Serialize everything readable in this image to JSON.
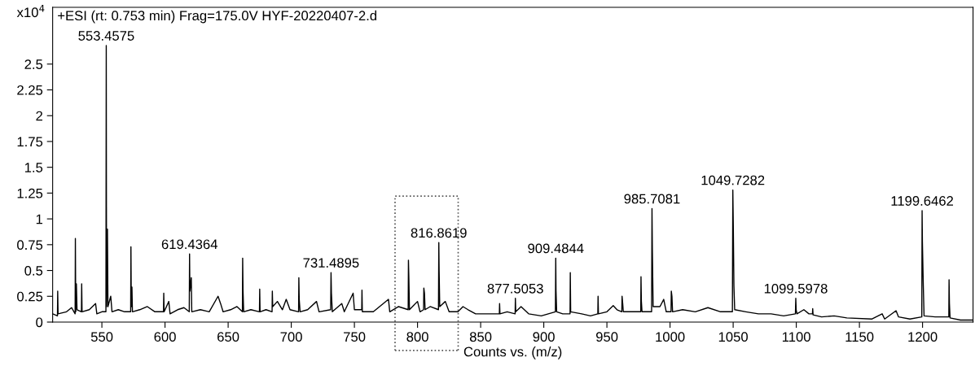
{
  "chart_data": {
    "type": "line",
    "title": "+ESI (rt: 0.753 min) Frag=175.0V HYF-20220407-2.d",
    "xlabel": "Counts vs. (m/z)",
    "ylabel": "x10$^{4}$",
    "xlim": [
      511,
      1240
    ],
    "xticks": [
      550,
      600,
      650,
      700,
      750,
      800,
      850,
      900,
      950,
      1000,
      1050,
      1100,
      1150,
      1200
    ],
    "ylim": [
      0,
      3.05
    ],
    "yticks": [
      0,
      0.25,
      0.5,
      0.75,
      1,
      1.25,
      1.5,
      1.75,
      2,
      2.25,
      2.5
    ],
    "grid": false,
    "legend": false,
    "marker": "none",
    "line_style": "solid",
    "series": [
      {
        "color": "#000000",
        "x": [
          511,
          514.8,
          515,
          515.3,
          522,
          526,
          528.8,
          529,
          529.3,
          529.8,
          530.3,
          533.8,
          534,
          534.3,
          540,
          545,
          546,
          550,
          553.2,
          553.46,
          553.7,
          554.4,
          554.8,
          557,
          558,
          563,
          568,
          572.8,
          573,
          573.3,
          573.8,
          574.2,
          580,
          586,
          592,
          598.8,
          599,
          599.3,
          603,
          604,
          610,
          615,
          619.2,
          619.44,
          619.7,
          620.8,
          621.2,
          628,
          635,
          642,
          644,
          646,
          652,
          657,
          661.3,
          661.5,
          661.8,
          662.3,
          668,
          674.8,
          675,
          675.3,
          680,
          684.8,
          685,
          685.3,
          689,
          693,
          696,
          699,
          705.8,
          706,
          706.3,
          707,
          713,
          720,
          722,
          731.2,
          731.49,
          731.8,
          732.5,
          740,
          742,
          749,
          750,
          755.8,
          756,
          756.3,
          765,
          777,
          778,
          785,
          792.6,
          792.8,
          793.1,
          793.6,
          800,
          802,
          804.8,
          805,
          805.5,
          806,
          810,
          816.6,
          816.86,
          817.1,
          817.6,
          822,
          825,
          832,
          836,
          840,
          846,
          855,
          864.8,
          865,
          865.3,
          871,
          877.3,
          877.5,
          877.8,
          882,
          888,
          898,
          909.2,
          909.48,
          909.7,
          910.2,
          915,
          920.8,
          921,
          921.3,
          930,
          937,
          942.8,
          943,
          943.3,
          950,
          955,
          958,
          961.8,
          962,
          962.5,
          963,
          970,
          976.8,
          977,
          977.3,
          977.8,
          985.4,
          985.71,
          986,
          986.6,
          992,
          995,
          997,
          1000.8,
          1001,
          1001.5,
          1002,
          1010,
          1020,
          1030,
          1040,
          1049.4,
          1049.73,
          1050.1,
          1050.6,
          1051.2,
          1060,
          1070,
          1080,
          1090,
          1099.3,
          1099.6,
          1099.9,
          1100.5,
          1106,
          1110,
          1112.8,
          1113,
          1113.3,
          1120,
          1130,
          1140,
          1160,
          1168,
          1170,
          1179,
          1181,
          1190,
          1199.4,
          1199.65,
          1199.9,
          1200.6,
          1201.2,
          1210,
          1220.8,
          1221,
          1221.3,
          1221.8,
          1230,
          1240
        ],
        "values": [
          0.08,
          0.06,
          0.3,
          0.08,
          0.1,
          0.14,
          0.08,
          0.81,
          0.1,
          0.37,
          0.12,
          0.1,
          0.37,
          0.1,
          0.12,
          0.18,
          0.08,
          0.1,
          0.1,
          2.68,
          0.15,
          0.9,
          0.15,
          0.25,
          0.1,
          0.12,
          0.1,
          0.1,
          0.73,
          0.15,
          0.34,
          0.1,
          0.12,
          0.15,
          0.1,
          0.1,
          0.28,
          0.1,
          0.2,
          0.08,
          0.12,
          0.14,
          0.1,
          0.66,
          0.3,
          0.43,
          0.1,
          0.12,
          0.1,
          0.25,
          0.18,
          0.1,
          0.12,
          0.15,
          0.1,
          0.62,
          0.3,
          0.1,
          0.12,
          0.1,
          0.32,
          0.1,
          0.12,
          0.1,
          0.3,
          0.15,
          0.2,
          0.12,
          0.22,
          0.12,
          0.1,
          0.43,
          0.22,
          0.1,
          0.12,
          0.2,
          0.1,
          0.12,
          0.48,
          0.28,
          0.1,
          0.18,
          0.1,
          0.28,
          0.12,
          0.12,
          0.31,
          0.1,
          0.1,
          0.22,
          0.1,
          0.15,
          0.12,
          0.6,
          0.45,
          0.12,
          0.2,
          0.1,
          0.12,
          0.33,
          0.28,
          0.12,
          0.15,
          0.12,
          0.77,
          0.5,
          0.15,
          0.2,
          0.1,
          0.1,
          0.15,
          0.12,
          0.08,
          0.08,
          0.08,
          0.18,
          0.08,
          0.1,
          0.08,
          0.23,
          0.1,
          0.15,
          0.08,
          0.06,
          0.1,
          0.62,
          0.3,
          0.1,
          0.08,
          0.08,
          0.48,
          0.1,
          0.08,
          0.06,
          0.08,
          0.25,
          0.08,
          0.1,
          0.16,
          0.12,
          0.1,
          0.25,
          0.18,
          0.1,
          0.1,
          0.1,
          0.44,
          0.2,
          0.1,
          0.1,
          1.1,
          0.7,
          0.15,
          0.15,
          0.22,
          0.1,
          0.1,
          0.3,
          0.25,
          0.1,
          0.12,
          0.1,
          0.14,
          0.1,
          0.1,
          1.28,
          0.94,
          0.35,
          0.12,
          0.1,
          0.08,
          0.08,
          0.06,
          0.08,
          0.23,
          0.12,
          0.08,
          0.12,
          0.08,
          0.08,
          0.13,
          0.07,
          0.05,
          0.06,
          0.04,
          0.03,
          0.08,
          0.03,
          0.11,
          0.05,
          0.03,
          0.05,
          1.08,
          0.77,
          0.35,
          0.06,
          0.05,
          0.05,
          0.41,
          0.18,
          0.04,
          0.02,
          0.02
        ]
      }
    ],
    "annotations": [
      {
        "text": "553.4575",
        "x": 553.46,
        "y": 2.68
      },
      {
        "text": "619.4364",
        "x": 619.44,
        "y": 0.66
      },
      {
        "text": "731.4895",
        "x": 731.49,
        "y": 0.48
      },
      {
        "text": "816.8619",
        "x": 816.86,
        "y": 0.77
      },
      {
        "text": "877.5053",
        "x": 877.5,
        "y": 0.23
      },
      {
        "text": "909.4844",
        "x": 909.48,
        "y": 0.62
      },
      {
        "text": "985.7081",
        "x": 985.71,
        "y": 1.1
      },
      {
        "text": "1049.7282",
        "x": 1049.73,
        "y": 1.28
      },
      {
        "text": "1099.5978",
        "x": 1099.6,
        "y": 0.23
      },
      {
        "text": "1199.6462",
        "x": 1199.65,
        "y": 1.08
      }
    ]
  }
}
